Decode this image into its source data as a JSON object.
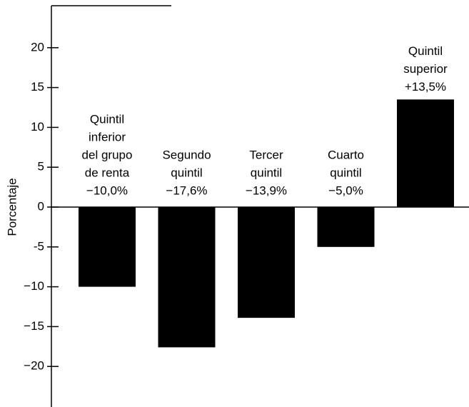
{
  "chart_data": {
    "type": "bar",
    "ylabel": "Porcentaje",
    "categories": [
      [
        "Quintil",
        "inferior",
        "del grupo",
        "de renta"
      ],
      [
        "Segundo",
        "quintil"
      ],
      [
        "Tercer",
        "quintil"
      ],
      [
        "Cuarto",
        "quintil"
      ],
      [
        "Quintil",
        "superior"
      ]
    ],
    "values": [
      -10.0,
      -17.6,
      -13.9,
      -5.0,
      13.5
    ],
    "value_labels": [
      "−10,0%",
      "−17,6%",
      "−13,9%",
      "−5,0%",
      "+13,5%"
    ],
    "color": "#000000",
    "ylim": [
      -25,
      25
    ],
    "yticks": [
      20,
      15,
      10,
      5,
      0,
      -5,
      {
        "value": -10,
        "label": "−10"
      },
      {
        "value": -15,
        "label": "−15"
      },
      {
        "value": -20,
        "label": "−20"
      }
    ]
  }
}
